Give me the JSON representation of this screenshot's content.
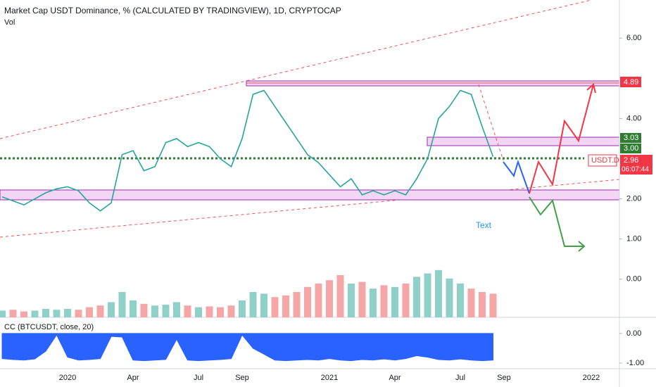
{
  "header": {
    "title": "Market Cap USDT Dominance, % (CALCULATED BY TRADINGVIEW), 1D, CRYPTOCAP",
    "volume_label": "Vol",
    "indicator_label": "CC (BTCUSDT, close, 20)",
    "annotation": "Text"
  },
  "price_labels": {
    "upper_zone": "4.89",
    "zone_top": "3.03",
    "zone_bottom": "3.00",
    "symbol": "USDT.D",
    "last": "2.96",
    "countdown": "06:07:44"
  },
  "chart_data": {
    "type": "line",
    "categories": [
      null,
      null,
      null,
      null,
      null,
      null,
      "2020",
      null,
      null,
      null,
      null,
      null,
      "Apr",
      null,
      null,
      null,
      null,
      null,
      "Jul",
      null,
      null,
      null,
      "Sep",
      null,
      null,
      null,
      null,
      null,
      null,
      null,
      "2021",
      null,
      null,
      null,
      null,
      null,
      "Apr",
      null,
      null,
      null,
      null,
      null,
      "Jul",
      null,
      null,
      null,
      "Sep",
      null,
      null,
      null,
      null,
      null,
      null,
      null,
      "2022"
    ],
    "series": [
      {
        "name": "USDT.D",
        "color": "#26a69a",
        "values": [
          2.05,
          1.95,
          1.85,
          2.0,
          2.15,
          2.25,
          2.3,
          2.2,
          1.9,
          1.7,
          1.9,
          3.1,
          3.2,
          2.7,
          2.8,
          3.4,
          3.5,
          3.3,
          3.4,
          3.3,
          3.0,
          2.8,
          3.5,
          4.6,
          4.7,
          4.3,
          3.9,
          3.5,
          3.1,
          2.9,
          2.6,
          2.3,
          2.5,
          2.1,
          2.2,
          2.1,
          2.2,
          2.1,
          2.5,
          3.0,
          4.0,
          4.3,
          4.7,
          4.6,
          3.8,
          3.05,
          null,
          null,
          null,
          null,
          null,
          null,
          null,
          null,
          null
        ]
      }
    ],
    "ylim": [
      -0.95,
      6.95
    ],
    "yticks": [
      {
        "value": 6,
        "label": "6.00"
      },
      {
        "value": 4,
        "label": "4.00"
      },
      {
        "value": 2,
        "label": "2.00"
      },
      {
        "value": 1,
        "label": "1.00"
      },
      {
        "value": 0,
        "label": "0.00"
      }
    ],
    "volume": {
      "up_color": "#8fd1c9",
      "down_color": "#f5a6a6",
      "vlim": [
        0,
        100
      ],
      "values": [
        8,
        9,
        7,
        8,
        10,
        9,
        10,
        9,
        12,
        14,
        18,
        30,
        20,
        16,
        14,
        15,
        18,
        14,
        12,
        13,
        12,
        14,
        20,
        30,
        28,
        24,
        26,
        30,
        36,
        40,
        44,
        50,
        40,
        42,
        34,
        38,
        36,
        40,
        48,
        52,
        56,
        46,
        40,
        34,
        30,
        28
      ]
    },
    "indicator": {
      "type": "area",
      "color": "#2962ff",
      "ylim": [
        -1.19,
        0.52
      ],
      "yticks": [
        {
          "value": 0,
          "label": "0.00"
        },
        {
          "value": -1,
          "label": "-1.00"
        }
      ],
      "values": [
        -0.85,
        -0.88,
        -0.9,
        -0.86,
        -0.6,
        -0.05,
        -0.8,
        -0.9,
        -0.88,
        -0.85,
        -0.1,
        -0.12,
        -0.9,
        -0.92,
        -0.9,
        -0.88,
        -0.2,
        -0.9,
        -0.92,
        -0.9,
        -0.88,
        -0.85,
        -0.05,
        -0.5,
        -0.7,
        -0.9,
        -0.92,
        -0.9,
        -0.88,
        -0.9,
        -0.85,
        -0.9,
        -0.92,
        -0.88,
        -0.9,
        -0.86,
        -0.9,
        -0.85,
        -0.75,
        -0.8,
        -0.88,
        -0.9,
        -0.86,
        -0.9,
        -0.92,
        -0.9
      ]
    }
  }
}
